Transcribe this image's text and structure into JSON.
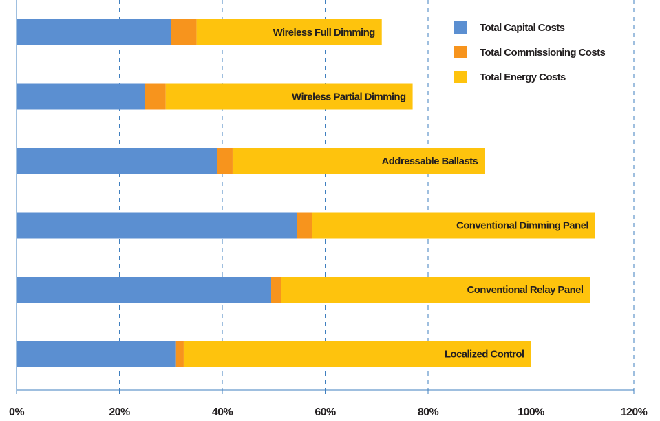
{
  "chart_data": {
    "type": "stacked_barh",
    "categories": [
      "Wireless Full Dimming",
      "Wireless Partial Dimming",
      "Addressable Ballasts",
      "Conventional Dimming Panel",
      "Conventional Relay Panel",
      "Localized Control"
    ],
    "series": [
      {
        "name": "Total Capital Costs",
        "color": "#5b8fd1",
        "values": [
          30,
          25,
          39,
          54.5,
          49.5,
          31
        ]
      },
      {
        "name": "Total Commissioning Costs",
        "color": "#f7941d",
        "values": [
          5,
          4,
          3,
          3,
          2,
          1.5
        ]
      },
      {
        "name": "Total Energy Costs",
        "color": "#fec30d",
        "values": [
          36,
          48,
          49,
          55,
          60,
          67.5
        ]
      }
    ],
    "xlim": [
      0,
      120
    ],
    "xticks": [
      {
        "value": 0,
        "label": "0%"
      },
      {
        "value": 20,
        "label": "20%"
      },
      {
        "value": 40,
        "label": "40%"
      },
      {
        "value": 60,
        "label": "60%"
      },
      {
        "value": 80,
        "label": "80%"
      },
      {
        "value": 100,
        "label": "100%"
      },
      {
        "value": 120,
        "label": "120%"
      }
    ],
    "grid": true,
    "legend": "top-right"
  }
}
